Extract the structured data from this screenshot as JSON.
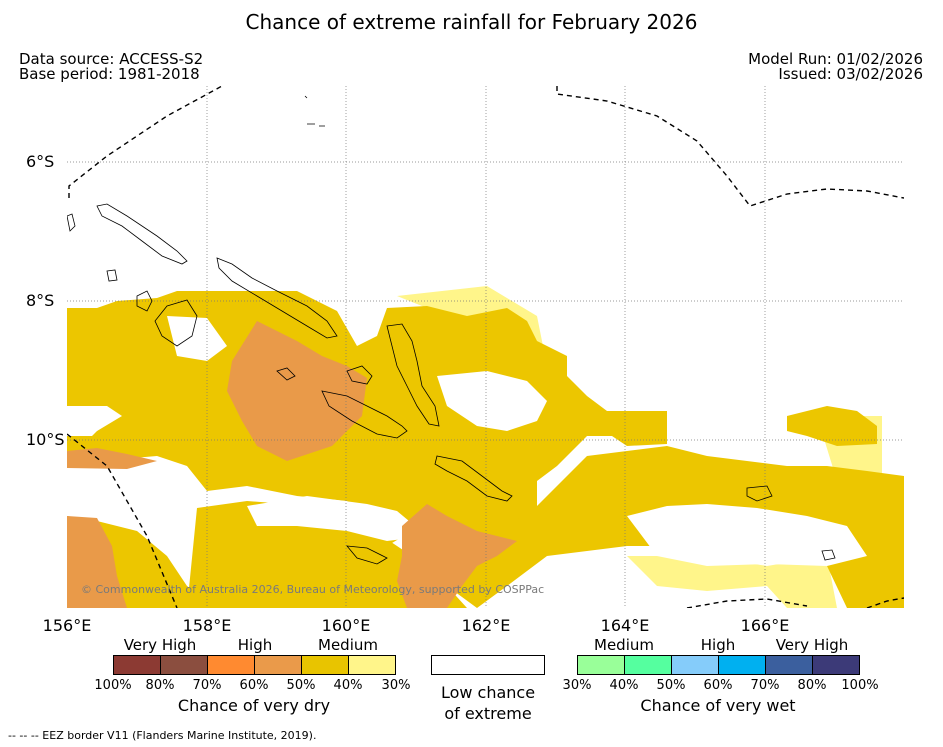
{
  "title": "Chance of extreme rainfall for February 2026",
  "meta": {
    "data_source": "Data source: ACCESS-S2",
    "base_period": "Base period: 1981-2018",
    "model_run": "Model Run: 01/02/2026",
    "issued": "Issued: 03/02/2026"
  },
  "map": {
    "copyright": "© Commonwealth of Australia 2026, Bureau of Meteorology, supported by COSPPac",
    "lat_labels": [
      "6°S",
      "8°S",
      "10°S"
    ],
    "lon_labels": [
      "156°E",
      "158°E",
      "160°E",
      "162°E",
      "164°E",
      "166°E"
    ]
  },
  "legend": {
    "dry": {
      "headers": [
        "Very High",
        "High",
        "Medium"
      ],
      "colors": [
        "#8c3a33",
        "#8b4e3f",
        "#ff8a30",
        "#ea9a4a",
        "#e8c400",
        "#fff58a"
      ],
      "ticks": [
        "100%",
        "80%",
        "70%",
        "60%",
        "50%",
        "40%",
        "30%"
      ],
      "caption": "Chance of very dry"
    },
    "low": {
      "color": "#ffffff",
      "caption_line1": "Low chance",
      "caption_line2": "of extreme"
    },
    "wet": {
      "headers": [
        "Medium",
        "High",
        "Very High"
      ],
      "colors": [
        "#99ff99",
        "#55ff9f",
        "#85ccfa",
        "#00b0f0",
        "#3b5f9e",
        "#3c3a78"
      ],
      "ticks": [
        "30%",
        "40%",
        "50%",
        "60%",
        "70%",
        "80%",
        "100%"
      ],
      "caption": "Chance of very wet"
    }
  },
  "footnote": "-- -- -- EEZ border V11 (Flanders Marine Institute, 2019)."
}
